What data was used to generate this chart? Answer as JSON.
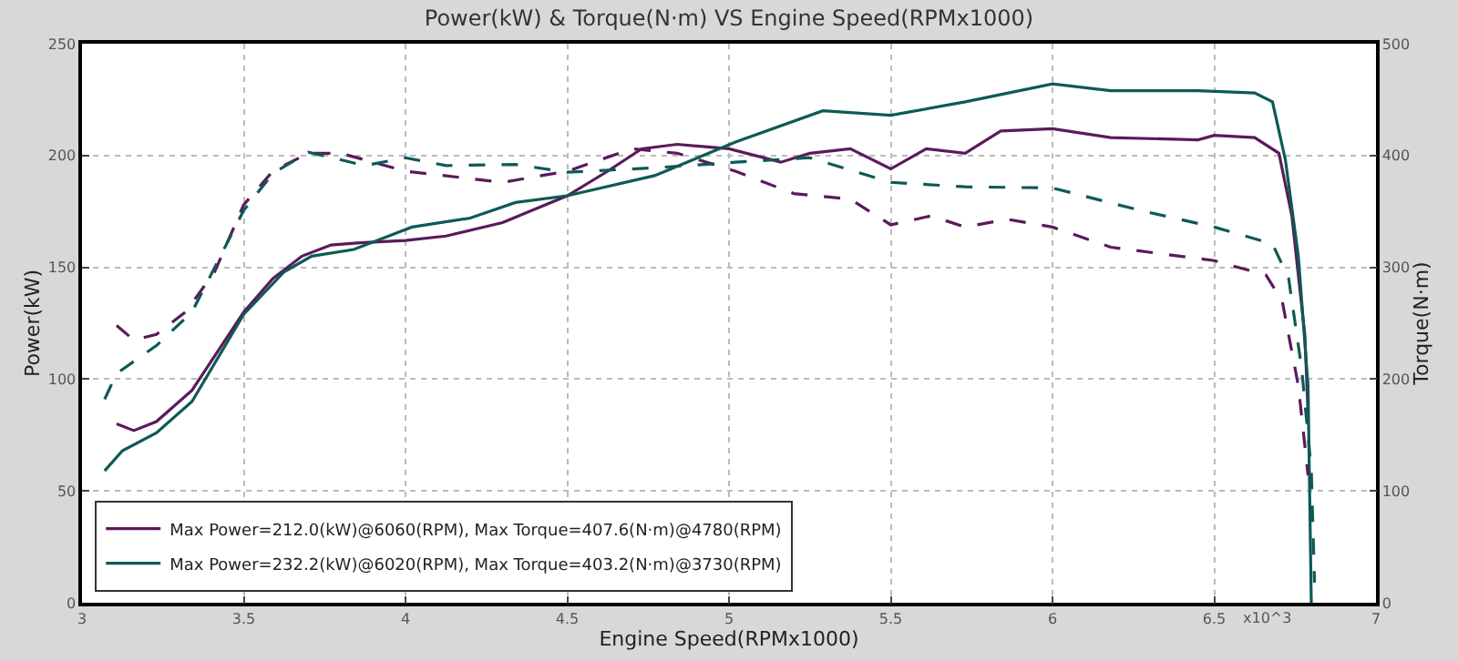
{
  "chart_data": {
    "type": "line",
    "title": "Power(kW) & Torque(N·m) VS Engine Speed(RPMx1000)",
    "xlabel": "Engine Speed(RPMx1000)",
    "ylabel": "Power(kW)",
    "y2label": "Torque(N·m)",
    "xlim": [
      3,
      7
    ],
    "xticks": [
      3,
      3.5,
      4,
      4.5,
      5,
      5.5,
      6,
      6.5,
      7
    ],
    "ylim": [
      0,
      250
    ],
    "yticks": [
      0,
      50,
      100,
      150,
      200,
      250
    ],
    "y2lim": [
      0,
      500
    ],
    "y2ticks": [
      0,
      100,
      200,
      300,
      400,
      500
    ],
    "grid": true,
    "legend": "bottom left",
    "annotations": [
      "x10^3"
    ],
    "series": [
      {
        "name": "Max Power=212.0(kW)@6060(RPM), Max Torque=407.6(N·m)@4780(RPM)",
        "color": "#5b1a5b",
        "line_style": "solid",
        "x": [
          3.107,
          3.16,
          3.23,
          3.34,
          3.5,
          3.59,
          3.68,
          3.77,
          3.86,
          4.0,
          4.125,
          4.3,
          4.5,
          4.625,
          4.73,
          4.84,
          5.0,
          5.16,
          5.25,
          5.375,
          5.5,
          5.61,
          5.73,
          5.84,
          6.0,
          6.18,
          6.45,
          6.5,
          6.625,
          6.7,
          6.74,
          6.78,
          6.79
        ],
        "values": [
          80,
          77,
          81,
          95,
          130,
          145,
          155,
          160,
          161,
          162,
          164,
          170,
          182,
          193,
          203,
          205,
          203,
          197,
          201,
          203,
          194,
          203,
          201,
          211,
          212,
          208,
          207,
          209,
          208,
          201,
          173,
          120,
          85
        ]
      },
      {
        "name": "Max Power=232.2(kW)@6020(RPM), Max Torque=403.2(N·m)@3730(RPM)",
        "color": "#0d5a55",
        "line_style": "solid",
        "x": [
          3.07,
          3.125,
          3.23,
          3.34,
          3.5,
          3.625,
          3.71,
          3.84,
          4.02,
          4.2,
          4.34,
          4.5,
          4.77,
          5.02,
          5.29,
          5.5,
          5.73,
          6.0,
          6.18,
          6.45,
          6.625,
          6.68,
          6.72,
          6.76,
          6.79,
          6.8
        ],
        "values": [
          59,
          68,
          76,
          90,
          129,
          148,
          155,
          158,
          168,
          172,
          179,
          182,
          191,
          206,
          220,
          218,
          224,
          232,
          229,
          229,
          228,
          224,
          198,
          155,
          97,
          0
        ]
      },
      {
        "color": "#5b1a5b",
        "line_style": "dashed",
        "axis": "y2",
        "x": [
          3.107,
          3.16,
          3.23,
          3.32,
          3.41,
          3.5,
          3.59,
          3.7,
          3.8,
          4.0,
          4.3,
          4.5,
          4.7,
          4.84,
          5.02,
          5.2,
          5.375,
          5.5,
          5.625,
          5.73,
          5.86,
          6.0,
          6.18,
          6.5,
          6.66,
          6.71,
          6.76,
          6.79
        ],
        "values": [
          248,
          235,
          240,
          260,
          296,
          356,
          386,
          402,
          402,
          386,
          376,
          386,
          406,
          402,
          386,
          366,
          361,
          338,
          346,
          336,
          343,
          336,
          318,
          306,
          293,
          270,
          194,
          114
        ]
      },
      {
        "color": "#0d5a55",
        "line_style": "dashed",
        "axis": "y2",
        "x": [
          3.07,
          3.107,
          3.23,
          3.34,
          3.5,
          3.59,
          3.7,
          3.875,
          4.0,
          4.125,
          4.34,
          4.5,
          4.77,
          5.02,
          5.25,
          5.5,
          5.73,
          6.0,
          6.27,
          6.5,
          6.68,
          6.73,
          6.77,
          6.8,
          6.81
        ],
        "values": [
          182,
          205,
          230,
          260,
          351,
          384,
          403,
          391,
          398,
          391,
          392,
          385,
          389,
          394,
          398,
          376,
          372,
          371,
          351,
          336,
          321,
          290,
          210,
          119,
          18
        ]
      }
    ]
  }
}
